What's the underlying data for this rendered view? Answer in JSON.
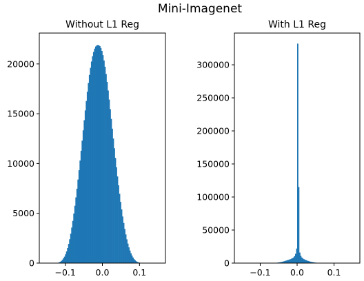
{
  "figure_title": "Mini-Imagenet",
  "colors": {
    "bar": "#1f77b4",
    "axes": "#000000"
  },
  "chart_data": [
    {
      "type": "bar",
      "title": "Without L1 Reg",
      "xlabel": "",
      "ylabel": "",
      "xlim": [
        -0.17,
        0.17
      ],
      "ylim": [
        0,
        23100
      ],
      "xticks": [
        -0.1,
        0.0,
        0.1
      ],
      "xtick_labels": [
        "−0.1",
        "0.0",
        "0.1"
      ],
      "yticks": [
        0,
        5000,
        10000,
        15000,
        20000
      ],
      "ytick_labels": [
        "0",
        "5000",
        "10000",
        "15000",
        "20000"
      ],
      "grid": false,
      "bin_width": 0.0028,
      "bins_x": [
        -0.1232,
        -0.1204,
        -0.1176,
        -0.1148,
        -0.112,
        -0.1092,
        -0.1064,
        -0.1036,
        -0.1008,
        -0.098,
        -0.0952,
        -0.0924,
        -0.0896,
        -0.0868,
        -0.084,
        -0.0812,
        -0.0784,
        -0.0756,
        -0.0728,
        -0.07,
        -0.0672,
        -0.0644,
        -0.0616,
        -0.0588,
        -0.056,
        -0.0532,
        -0.0504,
        -0.0476,
        -0.0448,
        -0.042,
        -0.0392,
        -0.0364,
        -0.0336,
        -0.0308,
        -0.028,
        -0.0252,
        -0.0224,
        -0.0196,
        -0.0168,
        -0.014,
        -0.0112,
        -0.0084,
        -0.0056,
        -0.0028,
        0.0,
        0.0028,
        0.0056,
        0.0084,
        0.0112,
        0.014,
        0.0168,
        0.0196,
        0.0224,
        0.0252,
        0.028,
        0.0308,
        0.0336,
        0.0364,
        0.0392,
        0.042,
        0.0448,
        0.0476,
        0.0504,
        0.0532,
        0.056,
        0.0588,
        0.0616,
        0.0644,
        0.0672,
        0.07,
        0.0728,
        0.0756,
        0.0784,
        0.0812,
        0.084,
        0.0868,
        0.0896,
        0.0924,
        0.0952,
        0.098,
        0.1008,
        0.1036,
        0.1064,
        0.1092,
        0.112
      ],
      "values": [
        20,
        40,
        80,
        140,
        220,
        340,
        480,
        650,
        880,
        1170,
        1520,
        1930,
        2400,
        2950,
        3570,
        4240,
        4970,
        5760,
        6600,
        7470,
        8390,
        9330,
        10300,
        11280,
        12300,
        13330,
        14350,
        15330,
        16280,
        17210,
        18090,
        18900,
        19610,
        20240,
        20780,
        21210,
        21530,
        21750,
        21860,
        21900,
        21880,
        21790,
        21600,
        21300,
        20880,
        20350,
        19720,
        18990,
        18190,
        17330,
        16420,
        15460,
        14480,
        13500,
        12510,
        11530,
        10560,
        9620,
        8700,
        7810,
        6960,
        6150,
        5390,
        4680,
        4030,
        3430,
        2880,
        2390,
        1960,
        1580,
        1260,
        980,
        750,
        560,
        400,
        280,
        190,
        120,
        80,
        50,
        30,
        20,
        10,
        5,
        3
      ]
    },
    {
      "type": "bar",
      "title": "With L1 Reg",
      "xlabel": "",
      "ylabel": "",
      "xlim": [
        -0.17,
        0.17
      ],
      "ylim": [
        0,
        348000
      ],
      "xticks": [
        -0.1,
        0.0,
        0.1
      ],
      "xtick_labels": [
        "−0.1",
        "0.0",
        "0.1"
      ],
      "yticks": [
        0,
        50000,
        100000,
        150000,
        200000,
        250000,
        300000
      ],
      "ytick_labels": [
        "0",
        "50000",
        "100000",
        "150000",
        "200000",
        "250000",
        "300000"
      ],
      "grid": false,
      "bin_width": 0.0028,
      "bins_x": [
        -0.0672,
        -0.0644,
        -0.0616,
        -0.0588,
        -0.056,
        -0.0532,
        -0.0504,
        -0.0476,
        -0.0448,
        -0.042,
        -0.0392,
        -0.0364,
        -0.0336,
        -0.0308,
        -0.028,
        -0.0252,
        -0.0224,
        -0.0196,
        -0.0168,
        -0.014,
        -0.0112,
        -0.0084,
        -0.0056,
        -0.0028,
        0.0,
        0.0028,
        0.0056,
        0.0084,
        0.0112,
        0.014,
        0.0168,
        0.0196,
        0.0224,
        0.0252,
        0.028,
        0.0308,
        0.0336,
        0.0364,
        0.0392,
        0.042,
        0.0448,
        0.0476,
        0.0504,
        0.0532,
        0.056,
        0.0588,
        0.0616,
        0.0644
      ],
      "values": [
        200,
        300,
        400,
        500,
        600,
        800,
        1000,
        1300,
        1600,
        2000,
        2400,
        2900,
        3400,
        3900,
        4400,
        4900,
        5400,
        6000,
        6700,
        7500,
        8500,
        10500,
        14000,
        22000,
        332000,
        115000,
        16000,
        11000,
        8500,
        7000,
        6000,
        5200,
        4500,
        3900,
        3300,
        2800,
        2300,
        1900,
        1600,
        1300,
        1000,
        800,
        600,
        450,
        350,
        250,
        180,
        120
      ]
    }
  ]
}
